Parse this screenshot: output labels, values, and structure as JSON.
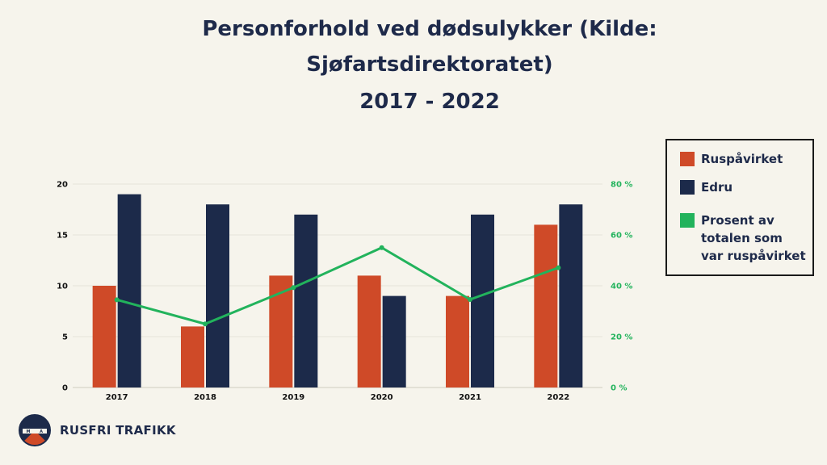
{
  "title_lines": [
    "Personforhold ved dødsulykker (Kilde:",
    "Sjøfartsdirektoratet)"
  ],
  "title_years": "2017 - 2022",
  "colors": {
    "ruspavirket": "#cf4a28",
    "edru": "#1c2a4a",
    "prosent": "#22b35c",
    "text": "#1e2a4a",
    "grid": "#e6e3da"
  },
  "chart_data": {
    "type": "bar",
    "categories": [
      "2017",
      "2018",
      "2019",
      "2020",
      "2021",
      "2022"
    ],
    "series": [
      {
        "name": "Ruspåvirket",
        "type": "bar",
        "axis": "left",
        "values": [
          10,
          6,
          11,
          11,
          9,
          16
        ]
      },
      {
        "name": "Edru",
        "type": "bar",
        "axis": "left",
        "values": [
          19,
          18,
          17,
          9,
          17,
          18
        ]
      },
      {
        "name": "Prosent av totalen som var ruspåvirket",
        "type": "line",
        "axis": "right",
        "values": [
          34.5,
          25.0,
          39.3,
          55.0,
          34.6,
          47.1
        ]
      }
    ],
    "ylim": [
      0,
      20
    ],
    "yticks": [
      "0",
      "5",
      "10",
      "15",
      "20"
    ],
    "y2lim": [
      0,
      80
    ],
    "y2ticks": [
      "0 %",
      "20 %",
      "40 %",
      "60 %",
      "80 %"
    ],
    "grid": true,
    "legend": "right"
  },
  "legend": {
    "items": [
      {
        "label_lines": [
          "Ruspåvirket"
        ],
        "color": "#cf4a28"
      },
      {
        "label_lines": [
          "Edru"
        ],
        "color": "#1c2a4a"
      },
      {
        "label_lines": [
          "Prosent av",
          "totalen som",
          "var ruspåvirket"
        ],
        "color": "#22b35c"
      }
    ]
  },
  "brand": {
    "name": "RUSFRI TRAFIKK",
    "logo_icon": "rusfri-trafikk-logo"
  }
}
